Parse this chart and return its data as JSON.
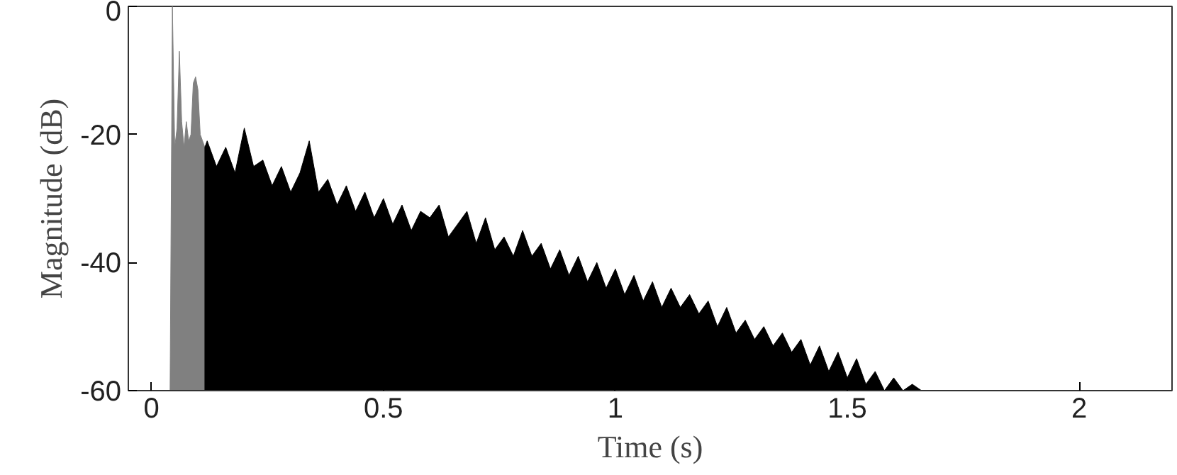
{
  "chart_data": {
    "type": "area",
    "xlabel": "Time (s)",
    "ylabel": "Magnitude (dB)",
    "xlim": [
      -0.05,
      2.2
    ],
    "ylim": [
      -60,
      0
    ],
    "xticks": [
      0,
      0.5,
      1,
      1.5,
      2
    ],
    "yticks": [
      -60,
      -40,
      -20,
      0
    ],
    "grid": false,
    "series": [
      {
        "color": "#808080",
        "x": [
          0.04,
          0.045,
          0.05,
          0.055,
          0.06,
          0.065,
          0.07,
          0.075,
          0.08,
          0.085,
          0.09,
          0.095,
          0.1,
          0.105,
          0.11,
          0.115,
          0.115
        ],
        "values": [
          -60,
          0,
          -22,
          -19,
          -7,
          -18,
          -22,
          -18,
          -21,
          -20,
          -12,
          -11,
          -13,
          -20,
          -21,
          -22,
          -60
        ]
      },
      {
        "color": "#000000",
        "x": [
          0.115,
          0.115,
          0.12,
          0.14,
          0.16,
          0.18,
          0.2,
          0.22,
          0.24,
          0.26,
          0.28,
          0.3,
          0.32,
          0.34,
          0.36,
          0.38,
          0.4,
          0.42,
          0.44,
          0.46,
          0.48,
          0.5,
          0.52,
          0.54,
          0.56,
          0.58,
          0.6,
          0.62,
          0.64,
          0.66,
          0.68,
          0.7,
          0.72,
          0.74,
          0.76,
          0.78,
          0.8,
          0.82,
          0.84,
          0.86,
          0.88,
          0.9,
          0.92,
          0.94,
          0.96,
          0.98,
          1.0,
          1.02,
          1.04,
          1.06,
          1.08,
          1.1,
          1.12,
          1.14,
          1.16,
          1.18,
          1.2,
          1.22,
          1.24,
          1.26,
          1.28,
          1.3,
          1.32,
          1.34,
          1.36,
          1.38,
          1.4,
          1.42,
          1.44,
          1.46,
          1.48,
          1.5,
          1.52,
          1.54,
          1.56,
          1.58,
          1.6,
          1.62,
          1.64,
          1.66
        ],
        "values": [
          -60,
          -22,
          -21,
          -25,
          -22,
          -26,
          -19,
          -25,
          -24,
          -28,
          -25,
          -29,
          -26,
          -21,
          -29,
          -27,
          -31,
          -28,
          -32,
          -29,
          -33,
          -30,
          -34,
          -31,
          -35,
          -32,
          -33,
          -31,
          -36,
          -34,
          -32,
          -37,
          -33,
          -38,
          -36,
          -39,
          -35,
          -39,
          -37,
          -41,
          -38,
          -42,
          -39,
          -43,
          -40,
          -44,
          -41,
          -45,
          -42,
          -46,
          -43,
          -47,
          -44,
          -47,
          -45,
          -48,
          -46,
          -50,
          -47,
          -51,
          -49,
          -52,
          -50,
          -53,
          -51,
          -54,
          -52,
          -56,
          -53,
          -57,
          -54,
          -58,
          -55,
          -59,
          -57,
          -60,
          -58,
          -60,
          -59,
          -60
        ]
      }
    ]
  }
}
